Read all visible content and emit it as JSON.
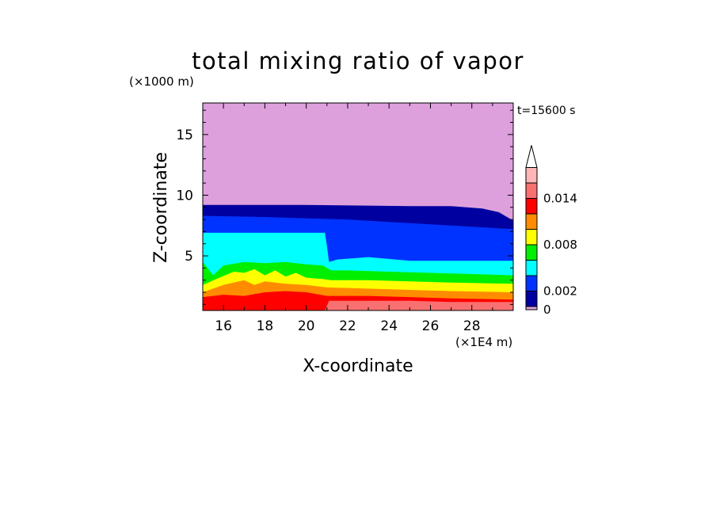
{
  "chart_data": {
    "type": "heatmap",
    "title": "total mixing ratio of vapor",
    "xlabel": "X-coordinate",
    "ylabel": "Z-coordinate",
    "x_unit": "(×1E4 m)",
    "y_unit": "(×1000 m)",
    "time_label": "t=15600 s",
    "xlim": [
      15,
      30
    ],
    "ylim": [
      0.5,
      17.6
    ],
    "x_ticks": [
      16,
      18,
      20,
      22,
      24,
      26,
      28
    ],
    "y_ticks": [
      5,
      10,
      15
    ],
    "grid": false,
    "colorbar": {
      "levels": [
        0,
        0.001,
        0.002,
        0.004,
        0.006,
        0.008,
        0.01,
        0.012,
        0.014,
        0.016
      ],
      "colors": [
        "#dda0dd",
        "#0000a0",
        "#0033ff",
        "#00ffff",
        "#00ee00",
        "#ffff00",
        "#ff8c00",
        "#ff0000",
        "#f87070",
        "#ffb6b6"
      ],
      "tick_labels": [
        "0",
        "0.002",
        "0.008",
        "0.014"
      ],
      "tick_values": [
        0,
        0.002,
        0.008,
        0.014
      ],
      "extend": "max"
    },
    "layers": [
      {
        "level": 0,
        "top": [
          [
            15,
            17.6
          ],
          [
            30,
            17.6
          ]
        ]
      },
      {
        "level": 0.001,
        "top": [
          [
            15,
            9.2
          ],
          [
            20,
            9.2
          ],
          [
            25,
            9.1
          ],
          [
            27,
            9.1
          ],
          [
            28.5,
            8.9
          ],
          [
            29.3,
            8.6
          ],
          [
            29.7,
            8.2
          ],
          [
            30,
            7.9
          ]
        ]
      },
      {
        "level": 0.002,
        "top": [
          [
            15,
            8.3
          ],
          [
            18,
            8.2
          ],
          [
            20,
            8.1
          ],
          [
            22,
            8.0
          ],
          [
            24,
            7.8
          ],
          [
            26,
            7.6
          ],
          [
            28,
            7.4
          ],
          [
            29,
            7.3
          ],
          [
            30,
            7.2
          ]
        ]
      },
      {
        "level": 0.004,
        "top": [
          [
            15,
            6.9
          ],
          [
            17,
            6.9
          ],
          [
            19,
            6.9
          ],
          [
            20.9,
            6.9
          ],
          [
            21.0,
            5.8
          ],
          [
            21.1,
            4.5
          ],
          [
            21.5,
            4.7
          ],
          [
            23,
            4.9
          ],
          [
            25,
            4.6
          ],
          [
            27,
            4.6
          ],
          [
            30,
            4.6
          ]
        ]
      },
      {
        "level": 0.006,
        "top": [
          [
            15,
            4.5
          ],
          [
            15.5,
            3.4
          ],
          [
            16,
            4.2
          ],
          [
            17,
            4.5
          ],
          [
            18,
            4.4
          ],
          [
            19,
            4.5
          ],
          [
            20,
            4.3
          ],
          [
            20.8,
            4.2
          ],
          [
            21.2,
            3.8
          ],
          [
            22,
            3.8
          ],
          [
            24,
            3.7
          ],
          [
            26,
            3.6
          ],
          [
            28,
            3.5
          ],
          [
            30,
            3.4
          ]
        ]
      },
      {
        "level": 0.008,
        "top": [
          [
            15,
            2.6
          ],
          [
            15.8,
            3.2
          ],
          [
            16.5,
            3.7
          ],
          [
            17,
            3.6
          ],
          [
            17.5,
            3.9
          ],
          [
            18,
            3.4
          ],
          [
            18.5,
            3.8
          ],
          [
            19,
            3.3
          ],
          [
            19.5,
            3.6
          ],
          [
            20,
            3.2
          ],
          [
            20.8,
            3.1
          ],
          [
            21.2,
            3.0
          ],
          [
            23,
            3.0
          ],
          [
            25,
            2.9
          ],
          [
            27,
            2.8
          ],
          [
            30,
            2.7
          ]
        ]
      },
      {
        "level": 0.01,
        "top": [
          [
            15,
            2.0
          ],
          [
            16,
            2.6
          ],
          [
            17,
            3.0
          ],
          [
            17.5,
            2.6
          ],
          [
            18,
            2.9
          ],
          [
            19,
            2.7
          ],
          [
            20,
            2.6
          ],
          [
            21,
            2.4
          ],
          [
            23,
            2.3
          ],
          [
            25,
            2.2
          ],
          [
            27,
            2.1
          ],
          [
            30,
            2.0
          ]
        ]
      },
      {
        "level": 0.012,
        "top": [
          [
            15,
            1.6
          ],
          [
            16,
            1.8
          ],
          [
            17,
            1.7
          ],
          [
            18,
            2.0
          ],
          [
            19,
            2.1
          ],
          [
            20,
            2.0
          ],
          [
            21,
            1.7
          ],
          [
            23,
            1.7
          ],
          [
            25,
            1.6
          ],
          [
            27,
            1.5
          ],
          [
            30,
            1.4
          ]
        ]
      },
      {
        "level": 0.014,
        "top": [
          [
            15,
            0.5
          ],
          [
            20.9,
            0.5
          ],
          [
            21.1,
            1.3
          ],
          [
            23,
            1.3
          ],
          [
            25,
            1.3
          ],
          [
            27,
            1.2
          ],
          [
            30,
            1.2
          ]
        ]
      }
    ]
  }
}
